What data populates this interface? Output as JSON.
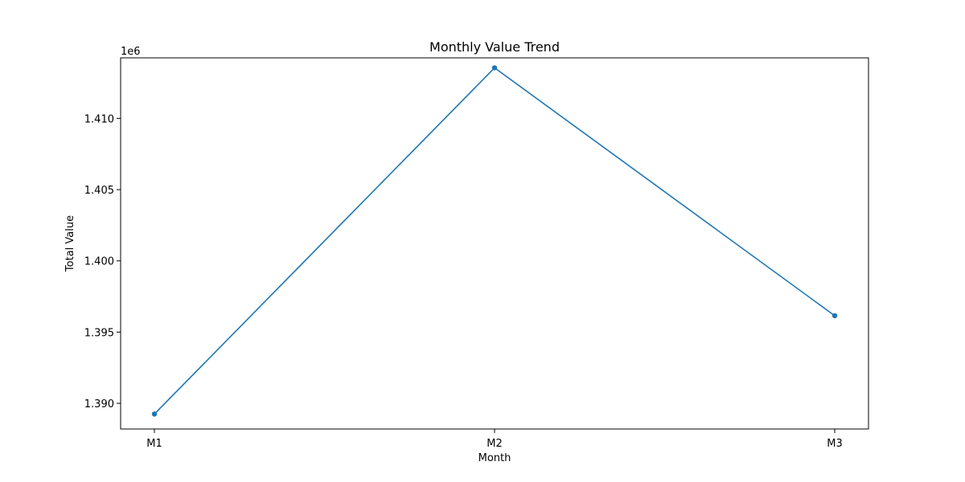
{
  "chart_data": {
    "type": "line",
    "title": "Monthly Value Trend",
    "xlabel": "Month",
    "ylabel": "Total Value",
    "y_offset_label": "1e6",
    "categories": [
      "M1",
      "M2",
      "M3"
    ],
    "series": [
      {
        "values": [
          1389250,
          1413550,
          1396150
        ],
        "color": "#1f77b4",
        "marker": "circle"
      }
    ],
    "ylim": [
      1388200,
      1414250
    ],
    "yticks": [
      1.39,
      1.395,
      1.4,
      1.405,
      1.41
    ],
    "ytick_labels": [
      "1.390",
      "1.395",
      "1.400",
      "1.405",
      "1.410"
    ],
    "ytick_scale": 1000000,
    "grid": false,
    "legend": "none"
  }
}
